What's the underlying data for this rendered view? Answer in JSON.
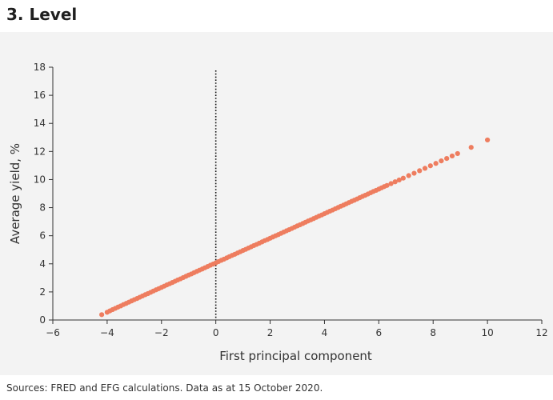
{
  "header": {
    "title": "3. Level"
  },
  "footer": {
    "source": "Sources: FRED and EFG calculations. Data as at 15 October 2020."
  },
  "colors": {
    "points": "#ee7d5f",
    "axis": "#333333",
    "background": "#f3f3f3"
  },
  "chart_data": {
    "type": "scatter",
    "xlabel": "First principal component",
    "ylabel": "Average yield, %",
    "xlim": [
      -6,
      12
    ],
    "ylim": [
      0,
      18
    ],
    "xticks": [
      -6,
      -4,
      -2,
      0,
      2,
      4,
      6,
      8,
      10,
      12
    ],
    "yticks": [
      0,
      2,
      4,
      6,
      8,
      10,
      12,
      14,
      16,
      18
    ],
    "xtick_labels": [
      "−6",
      "−4",
      "−2",
      "0",
      "2",
      "4",
      "6",
      "8",
      "10",
      "12"
    ],
    "ytick_labels": [
      "0",
      "2",
      "4",
      "6",
      "8",
      "10",
      "12",
      "14",
      "16",
      "18"
    ],
    "vertical_reference_line": {
      "x": 0,
      "style": "dotted"
    },
    "grid": false,
    "legend": "none",
    "points": [
      [
        -4.2,
        0.38
      ],
      [
        -4.0,
        0.55
      ],
      [
        -3.9,
        0.65
      ],
      [
        -3.8,
        0.74
      ],
      [
        -3.7,
        0.83
      ],
      [
        -3.6,
        0.92
      ],
      [
        -3.5,
        1.0
      ],
      [
        -3.4,
        1.1
      ],
      [
        -3.3,
        1.18
      ],
      [
        -3.2,
        1.27
      ],
      [
        -3.1,
        1.36
      ],
      [
        -3.0,
        1.45
      ],
      [
        -2.9,
        1.53
      ],
      [
        -2.8,
        1.62
      ],
      [
        -2.7,
        1.71
      ],
      [
        -2.6,
        1.8
      ],
      [
        -2.5,
        1.88
      ],
      [
        -2.4,
        1.97
      ],
      [
        -2.3,
        2.06
      ],
      [
        -2.2,
        2.15
      ],
      [
        -2.1,
        2.23
      ],
      [
        -2.0,
        2.32
      ],
      [
        -1.9,
        2.41
      ],
      [
        -1.8,
        2.5
      ],
      [
        -1.7,
        2.58
      ],
      [
        -1.6,
        2.67
      ],
      [
        -1.5,
        2.76
      ],
      [
        -1.4,
        2.85
      ],
      [
        -1.3,
        2.93
      ],
      [
        -1.2,
        3.02
      ],
      [
        -1.1,
        3.11
      ],
      [
        -1.0,
        3.2
      ],
      [
        -0.9,
        3.28
      ],
      [
        -0.8,
        3.37
      ],
      [
        -0.7,
        3.46
      ],
      [
        -0.6,
        3.55
      ],
      [
        -0.5,
        3.63
      ],
      [
        -0.4,
        3.72
      ],
      [
        -0.3,
        3.81
      ],
      [
        -0.2,
        3.9
      ],
      [
        -0.1,
        3.98
      ],
      [
        0.0,
        4.07
      ],
      [
        0.1,
        4.16
      ],
      [
        0.2,
        4.25
      ],
      [
        0.3,
        4.33
      ],
      [
        0.4,
        4.42
      ],
      [
        0.5,
        4.51
      ],
      [
        0.6,
        4.6
      ],
      [
        0.7,
        4.68
      ],
      [
        0.8,
        4.77
      ],
      [
        0.9,
        4.86
      ],
      [
        1.0,
        4.95
      ],
      [
        1.1,
        5.03
      ],
      [
        1.2,
        5.12
      ],
      [
        1.3,
        5.21
      ],
      [
        1.4,
        5.3
      ],
      [
        1.5,
        5.38
      ],
      [
        1.6,
        5.47
      ],
      [
        1.7,
        5.56
      ],
      [
        1.8,
        5.65
      ],
      [
        1.9,
        5.73
      ],
      [
        2.0,
        5.82
      ],
      [
        2.1,
        5.91
      ],
      [
        2.2,
        6.0
      ],
      [
        2.3,
        6.08
      ],
      [
        2.4,
        6.17
      ],
      [
        2.5,
        6.26
      ],
      [
        2.6,
        6.35
      ],
      [
        2.7,
        6.43
      ],
      [
        2.8,
        6.52
      ],
      [
        2.9,
        6.61
      ],
      [
        3.0,
        6.7
      ],
      [
        3.1,
        6.78
      ],
      [
        3.2,
        6.87
      ],
      [
        3.3,
        6.96
      ],
      [
        3.4,
        7.05
      ],
      [
        3.5,
        7.13
      ],
      [
        3.6,
        7.22
      ],
      [
        3.7,
        7.31
      ],
      [
        3.8,
        7.4
      ],
      [
        3.9,
        7.48
      ],
      [
        4.0,
        7.57
      ],
      [
        4.1,
        7.66
      ],
      [
        4.2,
        7.75
      ],
      [
        4.3,
        7.83
      ],
      [
        4.4,
        7.92
      ],
      [
        4.5,
        8.01
      ],
      [
        4.6,
        8.1
      ],
      [
        4.7,
        8.18
      ],
      [
        4.8,
        8.27
      ],
      [
        4.9,
        8.36
      ],
      [
        5.0,
        8.45
      ],
      [
        5.1,
        8.53
      ],
      [
        5.2,
        8.62
      ],
      [
        5.3,
        8.71
      ],
      [
        5.4,
        8.8
      ],
      [
        5.5,
        8.88
      ],
      [
        5.6,
        8.97
      ],
      [
        5.7,
        9.06
      ],
      [
        5.8,
        9.15
      ],
      [
        5.9,
        9.23
      ],
      [
        6.0,
        9.32
      ],
      [
        6.1,
        9.41
      ],
      [
        6.2,
        9.5
      ],
      [
        6.3,
        9.58
      ],
      [
        6.45,
        9.71
      ],
      [
        6.6,
        9.84
      ],
      [
        6.75,
        9.97
      ],
      [
        6.9,
        10.1
      ],
      [
        7.1,
        10.28
      ],
      [
        7.3,
        10.45
      ],
      [
        7.5,
        10.63
      ],
      [
        7.7,
        10.8
      ],
      [
        7.9,
        10.98
      ],
      [
        8.1,
        11.15
      ],
      [
        8.3,
        11.33
      ],
      [
        8.5,
        11.5
      ],
      [
        8.7,
        11.68
      ],
      [
        8.9,
        11.85
      ],
      [
        9.4,
        12.29
      ],
      [
        10.0,
        12.82
      ]
    ]
  }
}
